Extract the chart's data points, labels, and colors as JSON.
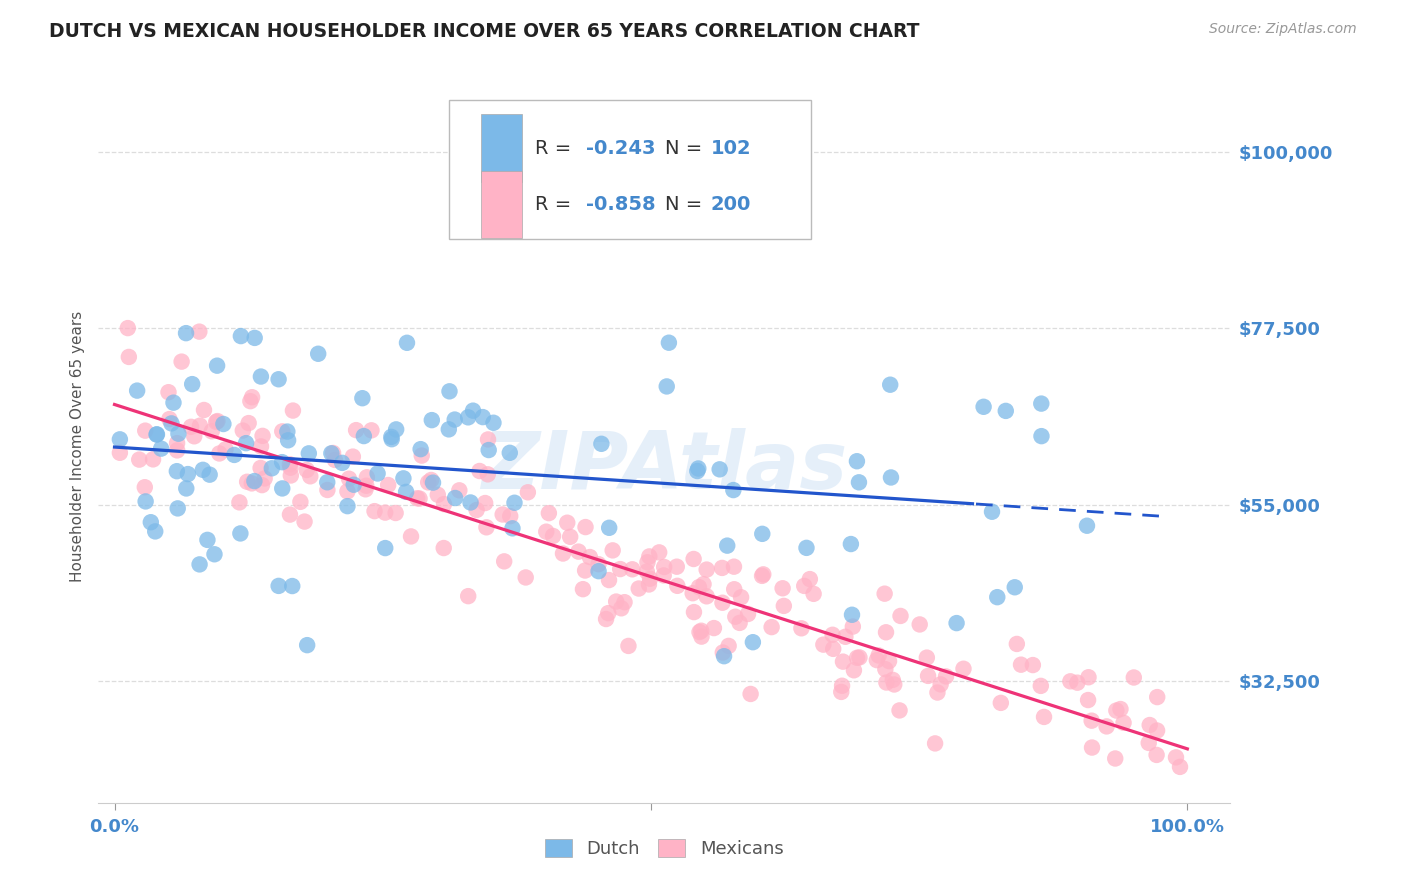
{
  "title": "DUTCH VS MEXICAN HOUSEHOLDER INCOME OVER 65 YEARS CORRELATION CHART",
  "source": "Source: ZipAtlas.com",
  "ylabel": "Householder Income Over 65 years",
  "ytick_labels": [
    "$32,500",
    "$55,000",
    "$77,500",
    "$100,000"
  ],
  "ytick_values": [
    32500,
    55000,
    77500,
    100000
  ],
  "ymin": 17000,
  "ymax": 108000,
  "xmin": -0.015,
  "xmax": 1.04,
  "blue_color": "#7CB9E8",
  "pink_color": "#FFB3C6",
  "blue_line_color": "#2255CC",
  "pink_line_color": "#EE3377",
  "watermark_color": "#AACCEE",
  "title_color": "#222222",
  "axis_label_color": "#4488CC",
  "background_color": "#FFFFFF",
  "grid_color": "#DDDDDD",
  "dutch_intercept": 62000,
  "dutch_slope": -10000,
  "dutch_noise": 9000,
  "mex_intercept": 68000,
  "mex_slope": -45000,
  "mex_noise": 4500,
  "dutch_line_end_solid": 0.8,
  "dutch_line_end": 0.98
}
